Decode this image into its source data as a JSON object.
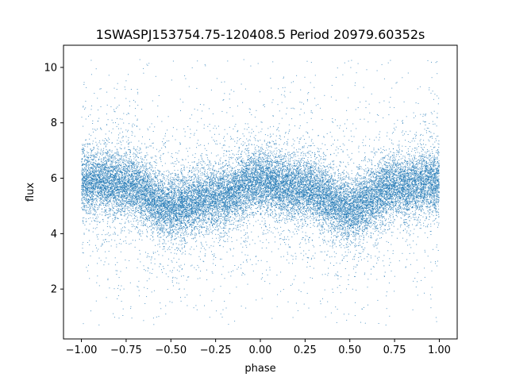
{
  "chart_data": {
    "type": "scatter",
    "title": "1SWASPJ153754.75-120408.5 Period 20979.60352s",
    "xlabel": "phase",
    "ylabel": "flux",
    "xlim": [
      -1.1,
      1.1
    ],
    "ylim": [
      0.2,
      10.8
    ],
    "x_ticks": [
      -1.0,
      -0.75,
      -0.5,
      -0.25,
      0.0,
      0.25,
      0.5,
      0.75,
      1.0
    ],
    "x_tick_labels": [
      "−1.00",
      "−0.75",
      "−0.50",
      "−0.25",
      "0.00",
      "0.25",
      "0.50",
      "0.75",
      "1.00"
    ],
    "y_ticks": [
      2,
      4,
      6,
      8,
      10
    ],
    "y_tick_labels": [
      "2",
      "4",
      "6",
      "8",
      "10"
    ],
    "grid": false,
    "marker_color": "#1f77b4",
    "series": [
      {
        "x_range": [
          -1.0,
          1.0
        ],
        "trend": [
          {
            "x": -1.0,
            "y": 5.9
          },
          {
            "x": -0.75,
            "y": 5.8
          },
          {
            "x": -0.5,
            "y": 4.9
          },
          {
            "x": -0.25,
            "y": 5.3
          },
          {
            "x": 0.0,
            "y": 5.9
          },
          {
            "x": 0.25,
            "y": 5.6
          },
          {
            "x": 0.5,
            "y": 4.9
          },
          {
            "x": 0.75,
            "y": 5.7
          },
          {
            "x": 1.0,
            "y": 5.9
          }
        ],
        "core_spread": 0.55,
        "envelope_range": [
          0.7,
          10.3
        ],
        "point_count": 24000
      }
    ]
  }
}
